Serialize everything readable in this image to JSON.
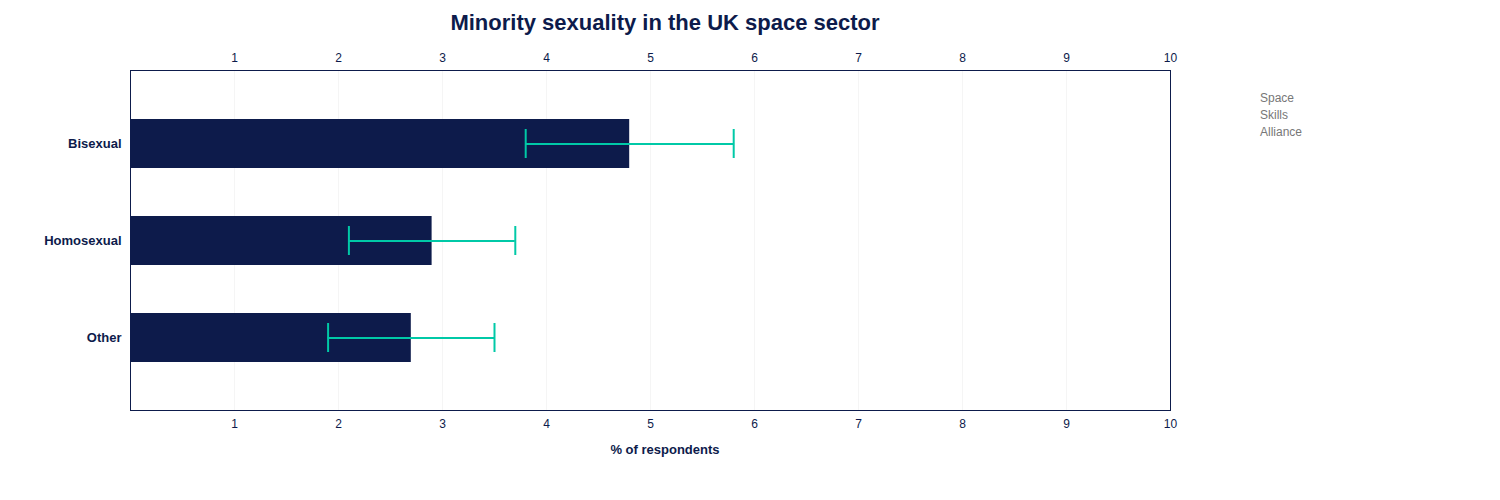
{
  "chart_data": {
    "type": "bar",
    "orientation": "horizontal",
    "title": "Minority sexuality in the UK space sector",
    "categories": [
      "Other",
      "Homosexual",
      "Bisexual"
    ],
    "values": [
      2.7,
      2.9,
      4.8
    ],
    "errors": [
      0.8,
      0.8,
      1.0
    ],
    "color": "#0d1b4b",
    "xlabel": "% of respondents",
    "xlim": [
      0,
      10
    ],
    "xticks": [
      1,
      2,
      3,
      4,
      5,
      6,
      7,
      8,
      9,
      10
    ],
    "grid": true,
    "annotations": [
      "Space\nSkills\nAlliance"
    ]
  }
}
